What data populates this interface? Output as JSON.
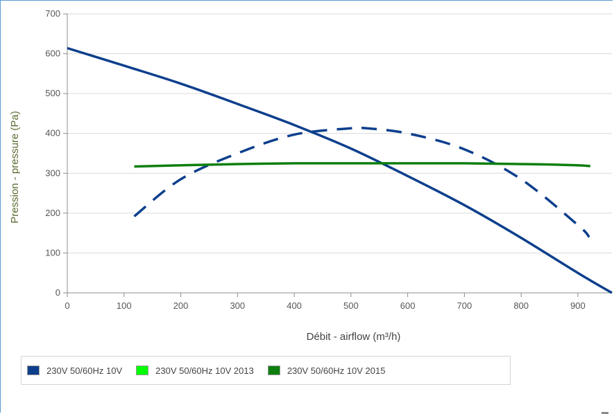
{
  "chart_data": {
    "type": "line",
    "title": "",
    "xlabel": "Débit - airflow (m³/h)",
    "ylabel": "Pression - pressure (Pa)",
    "xlim": [
      0,
      960
    ],
    "ylim": [
      0,
      700
    ],
    "xticks": [
      0,
      100,
      200,
      300,
      400,
      500,
      600,
      700,
      800,
      900
    ],
    "yticks": [
      0,
      100,
      200,
      300,
      400,
      500,
      600,
      700
    ],
    "grid": true,
    "legend_position": "bottom",
    "series": [
      {
        "name": "230V 50/60Hz 10V",
        "color": "#0d3f8c",
        "style": "solid",
        "x": [
          0,
          100,
          200,
          300,
          400,
          500,
          600,
          700,
          800,
          900,
          960
        ],
        "y": [
          614,
          570,
          525,
          474,
          421,
          362,
          293,
          220,
          138,
          50,
          0
        ]
      },
      {
        "name": "",
        "color": "#0d3f8c",
        "style": "dashed",
        "x": [
          118,
          200,
          300,
          400,
          500,
          520,
          600,
          700,
          800,
          900,
          920
        ],
        "y": [
          192,
          285,
          350,
          397,
          413,
          414,
          400,
          360,
          285,
          170,
          140
        ]
      },
      {
        "name": "230V 50/60Hz 10V 2013",
        "color": "#00ff00",
        "style": "none",
        "x": [],
        "y": []
      },
      {
        "name": "230V 50/60Hz 10V 2015",
        "color": "#0e7f0e",
        "style": "solid",
        "x": [
          118,
          200,
          300,
          400,
          500,
          600,
          700,
          800,
          850,
          900,
          922
        ],
        "y": [
          317,
          320,
          323,
          325,
          325,
          325,
          325,
          323,
          322,
          320,
          318
        ]
      }
    ]
  }
}
